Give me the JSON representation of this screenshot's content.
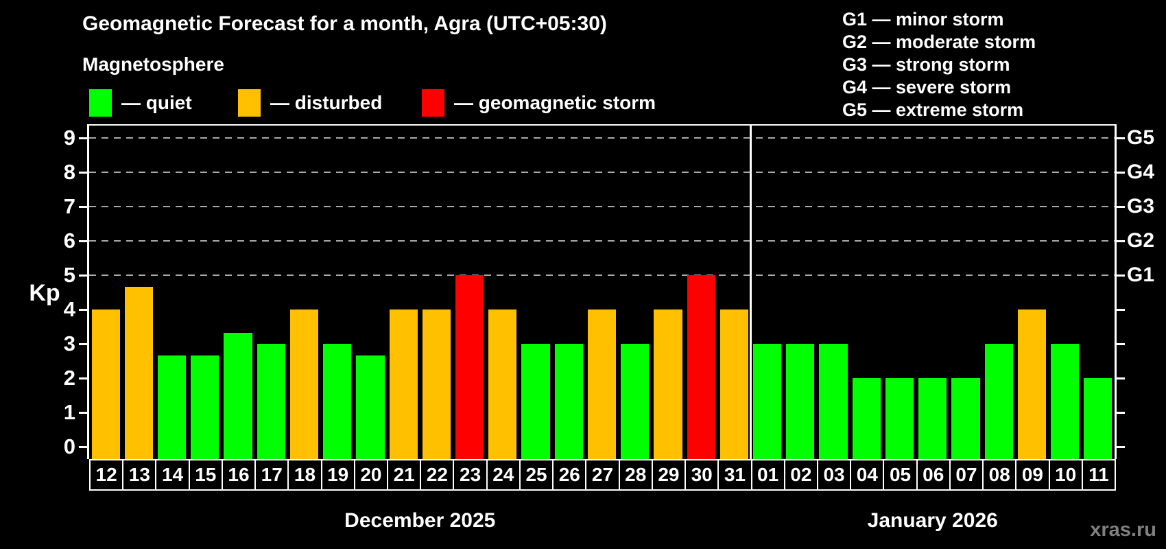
{
  "title": "Geomagnetic Forecast for a month, Agra (UTC+05:30)",
  "subtitle": "Magnetosphere",
  "legend": {
    "items": [
      {
        "key": "quiet",
        "label": "— quiet",
        "color": "#00ff00"
      },
      {
        "key": "disturbed",
        "label": "— disturbed",
        "color": "#ffc000"
      },
      {
        "key": "storm",
        "label": "— geomagnetic storm",
        "color": "#ff0000"
      }
    ]
  },
  "g_legend": [
    "G1 — minor storm",
    "G2 — moderate storm",
    "G3 — strong storm",
    "G4 — severe storm",
    "G5 — extreme storm"
  ],
  "watermark": "xras.ru",
  "chart_data": {
    "type": "bar",
    "ylabel": "Kp",
    "ylim": [
      0,
      9
    ],
    "y_ticks": [
      0,
      1,
      2,
      3,
      4,
      5,
      6,
      7,
      8,
      9
    ],
    "gridline_levels": [
      5,
      6,
      7,
      8,
      9
    ],
    "right_axis_labels": [
      {
        "label": "G1",
        "kp": 5
      },
      {
        "label": "G2",
        "kp": 6
      },
      {
        "label": "G3",
        "kp": 7
      },
      {
        "label": "G4",
        "kp": 8
      },
      {
        "label": "G5",
        "kp": 9
      }
    ],
    "level_colors": {
      "quiet": "#00ff00",
      "disturbed": "#ffc000",
      "storm": "#ff0000"
    },
    "grid_color": "#aaaaaa",
    "months": [
      {
        "label": "December 2025",
        "bars": [
          {
            "day": "12",
            "kp": 4,
            "level": "disturbed"
          },
          {
            "day": "13",
            "kp": 4.67,
            "level": "disturbed"
          },
          {
            "day": "14",
            "kp": 2.67,
            "level": "quiet"
          },
          {
            "day": "15",
            "kp": 2.67,
            "level": "quiet"
          },
          {
            "day": "16",
            "kp": 3.33,
            "level": "quiet"
          },
          {
            "day": "17",
            "kp": 3,
            "level": "quiet"
          },
          {
            "day": "18",
            "kp": 4,
            "level": "disturbed"
          },
          {
            "day": "19",
            "kp": 3,
            "level": "quiet"
          },
          {
            "day": "20",
            "kp": 2.67,
            "level": "quiet"
          },
          {
            "day": "21",
            "kp": 4,
            "level": "disturbed"
          },
          {
            "day": "22",
            "kp": 4,
            "level": "disturbed"
          },
          {
            "day": "23",
            "kp": 5,
            "level": "storm"
          },
          {
            "day": "24",
            "kp": 4,
            "level": "disturbed"
          },
          {
            "day": "25",
            "kp": 3,
            "level": "quiet"
          },
          {
            "day": "26",
            "kp": 3,
            "level": "quiet"
          },
          {
            "day": "27",
            "kp": 4,
            "level": "disturbed"
          },
          {
            "day": "28",
            "kp": 3,
            "level": "quiet"
          },
          {
            "day": "29",
            "kp": 4,
            "level": "disturbed"
          },
          {
            "day": "30",
            "kp": 5,
            "level": "storm"
          },
          {
            "day": "31",
            "kp": 4,
            "level": "disturbed"
          }
        ]
      },
      {
        "label": "January 2026",
        "bars": [
          {
            "day": "01",
            "kp": 3,
            "level": "quiet"
          },
          {
            "day": "02",
            "kp": 3,
            "level": "quiet"
          },
          {
            "day": "03",
            "kp": 3,
            "level": "quiet"
          },
          {
            "day": "04",
            "kp": 2,
            "level": "quiet"
          },
          {
            "day": "05",
            "kp": 2,
            "level": "quiet"
          },
          {
            "day": "06",
            "kp": 2,
            "level": "quiet"
          },
          {
            "day": "07",
            "kp": 2,
            "level": "quiet"
          },
          {
            "day": "08",
            "kp": 3,
            "level": "quiet"
          },
          {
            "day": "09",
            "kp": 4,
            "level": "disturbed"
          },
          {
            "day": "10",
            "kp": 3,
            "level": "quiet"
          },
          {
            "day": "11",
            "kp": 2,
            "level": "quiet"
          }
        ]
      }
    ]
  }
}
